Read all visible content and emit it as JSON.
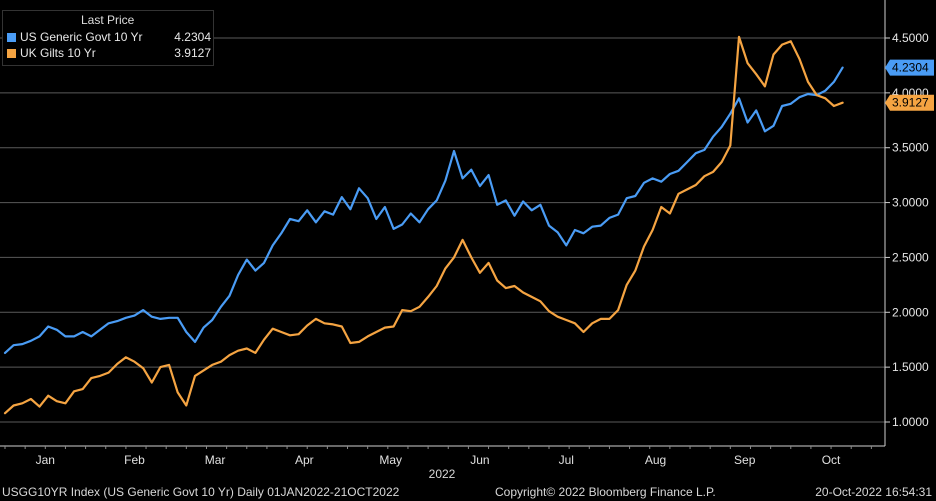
{
  "legend": {
    "header": "Last Price",
    "items": [
      {
        "name": "US Generic Govt 10 Yr",
        "value": "4.2304",
        "color": "#4a9cf5"
      },
      {
        "name": "UK Gilts 10 Yr",
        "value": "3.9127",
        "color": "#f5a442"
      }
    ]
  },
  "footer": {
    "left": "USGG10YR Index (US Generic Govt 10 Yr)  Daily 01JAN2022-21OCT2022",
    "center": "Copyright© 2022 Bloomberg Finance L.P.",
    "right": "20-Oct-2022 16:54:31"
  },
  "chart_data": {
    "type": "line",
    "title": "",
    "year_label": "2022",
    "ylim": [
      0.8,
      4.85
    ],
    "yticks": [
      "1.0000",
      "1.5000",
      "2.0000",
      "2.5000",
      "3.0000",
      "3.5000",
      "4.0000",
      "4.5000"
    ],
    "ytick_values": [
      1.0,
      1.5,
      2.0,
      2.5,
      3.0,
      3.5,
      4.0,
      4.5
    ],
    "months": [
      {
        "label": "Jan",
        "day": 15
      },
      {
        "label": "Feb",
        "day": 46
      },
      {
        "label": "Mar",
        "day": 74
      },
      {
        "label": "Apr",
        "day": 105
      },
      {
        "label": "May",
        "day": 135
      },
      {
        "label": "Jun",
        "day": 166
      },
      {
        "label": "Jul",
        "day": 196
      },
      {
        "label": "Aug",
        "day": 227
      },
      {
        "label": "Sep",
        "day": 258
      },
      {
        "label": "Oct",
        "day": 288
      }
    ],
    "xlim_days": [
      1,
      305
    ],
    "last_labels": [
      {
        "series": 0,
        "value": "4.2304"
      },
      {
        "series": 1,
        "value": "3.9127"
      }
    ],
    "series": [
      {
        "name": "US Generic Govt 10 Yr",
        "color": "#4a9cf5",
        "days": [
          1,
          4,
          7,
          10,
          13,
          16,
          19,
          22,
          25,
          28,
          31,
          34,
          37,
          40,
          43,
          46,
          49,
          52,
          55,
          58,
          61,
          64,
          67,
          70,
          73,
          76,
          79,
          82,
          85,
          88,
          91,
          94,
          97,
          100,
          103,
          106,
          109,
          112,
          115,
          118,
          121,
          124,
          127,
          130,
          133,
          136,
          139,
          142,
          145,
          148,
          151,
          154,
          157,
          160,
          163,
          166,
          169,
          172,
          175,
          178,
          181,
          184,
          187,
          190,
          193,
          196,
          199,
          202,
          205,
          208,
          211,
          214,
          217,
          220,
          223,
          226,
          229,
          232,
          235,
          238,
          241,
          244,
          247,
          250,
          253,
          256,
          259,
          262,
          265,
          268,
          271,
          274,
          277,
          280,
          283,
          286,
          289,
          292
        ],
        "values": [
          1.63,
          1.7,
          1.71,
          1.74,
          1.78,
          1.87,
          1.84,
          1.78,
          1.78,
          1.82,
          1.78,
          1.84,
          1.9,
          1.92,
          1.95,
          1.97,
          2.02,
          1.96,
          1.94,
          1.95,
          1.95,
          1.82,
          1.73,
          1.86,
          1.93,
          2.05,
          2.15,
          2.34,
          2.48,
          2.38,
          2.45,
          2.61,
          2.72,
          2.85,
          2.83,
          2.93,
          2.82,
          2.92,
          2.89,
          3.05,
          2.94,
          3.13,
          3.04,
          2.85,
          2.96,
          2.76,
          2.8,
          2.9,
          2.82,
          2.94,
          3.02,
          3.2,
          3.47,
          3.22,
          3.3,
          3.15,
          3.25,
          2.98,
          3.02,
          2.88,
          3.01,
          2.93,
          2.98,
          2.79,
          2.73,
          2.61,
          2.75,
          2.72,
          2.78,
          2.79,
          2.86,
          2.89,
          3.04,
          3.06,
          3.18,
          3.22,
          3.19,
          3.26,
          3.29,
          3.37,
          3.45,
          3.48,
          3.6,
          3.69,
          3.81,
          3.95,
          3.73,
          3.84,
          3.65,
          3.7,
          3.88,
          3.9,
          3.96,
          3.99,
          3.98,
          4.02,
          4.1,
          4.23
        ]
      },
      {
        "name": "UK Gilts 10 Yr",
        "color": "#f5a442",
        "days": [
          1,
          4,
          7,
          10,
          13,
          16,
          19,
          22,
          25,
          28,
          31,
          34,
          37,
          40,
          43,
          46,
          49,
          52,
          55,
          58,
          61,
          64,
          67,
          70,
          73,
          76,
          79,
          82,
          85,
          88,
          91,
          94,
          97,
          100,
          103,
          106,
          109,
          112,
          115,
          118,
          121,
          124,
          127,
          130,
          133,
          136,
          139,
          142,
          145,
          148,
          151,
          154,
          157,
          160,
          163,
          166,
          169,
          172,
          175,
          178,
          181,
          184,
          187,
          190,
          193,
          196,
          199,
          202,
          205,
          208,
          211,
          214,
          217,
          220,
          223,
          226,
          229,
          232,
          235,
          238,
          241,
          244,
          247,
          250,
          253,
          256,
          259,
          262,
          265,
          268,
          271,
          274,
          277,
          280,
          283,
          286,
          289,
          292
        ],
        "values": [
          1.08,
          1.15,
          1.17,
          1.21,
          1.14,
          1.24,
          1.19,
          1.17,
          1.28,
          1.3,
          1.4,
          1.42,
          1.45,
          1.53,
          1.59,
          1.55,
          1.49,
          1.36,
          1.5,
          1.52,
          1.27,
          1.15,
          1.42,
          1.47,
          1.52,
          1.55,
          1.61,
          1.65,
          1.67,
          1.63,
          1.75,
          1.85,
          1.82,
          1.79,
          1.8,
          1.88,
          1.94,
          1.9,
          1.89,
          1.87,
          1.72,
          1.73,
          1.78,
          1.82,
          1.86,
          1.87,
          2.02,
          2.01,
          2.05,
          2.14,
          2.24,
          2.4,
          2.5,
          2.66,
          2.5,
          2.36,
          2.45,
          2.29,
          2.22,
          2.24,
          2.18,
          2.14,
          2.1,
          2.01,
          1.96,
          1.93,
          1.9,
          1.82,
          1.9,
          1.94,
          1.94,
          2.02,
          2.25,
          2.38,
          2.6,
          2.75,
          2.96,
          2.9,
          3.08,
          3.12,
          3.16,
          3.24,
          3.28,
          3.37,
          3.52,
          4.51,
          4.27,
          4.17,
          4.06,
          4.35,
          4.44,
          4.47,
          4.31,
          4.1,
          3.98,
          3.95,
          3.88,
          3.91
        ]
      }
    ]
  }
}
